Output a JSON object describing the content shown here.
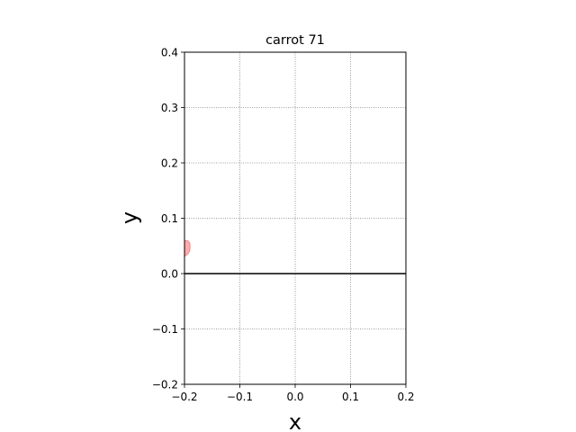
{
  "chart_data": {
    "type": "area",
    "title": "carrot 71",
    "xlabel": "x",
    "ylabel": "y",
    "xlim": [
      -0.2,
      0.2
    ],
    "ylim": [
      -0.2,
      0.4
    ],
    "xticks": [
      -0.2,
      -0.1,
      0.0,
      0.1,
      0.2
    ],
    "xtick_labels": [
      "−0.2",
      "−0.1",
      "0.0",
      "0.1",
      "0.2"
    ],
    "yticks": [
      -0.2,
      -0.1,
      0.0,
      0.1,
      0.2,
      0.3,
      0.4
    ],
    "ytick_labels": [
      "−0.2",
      "−0.1",
      "0.0",
      "0.1",
      "0.2",
      "0.3",
      "0.4"
    ],
    "grid": true,
    "hline": {
      "y": 0.0,
      "color": "#000000"
    },
    "series": [
      {
        "color": "#ff9999",
        "outline_color": "#ff8080",
        "points": [
          [
            -0.2,
            0.031
          ],
          [
            -0.1935,
            0.036
          ],
          [
            -0.1905,
            0.042
          ],
          [
            -0.19,
            0.049
          ],
          [
            -0.1905,
            0.055
          ],
          [
            -0.1935,
            0.059
          ],
          [
            -0.2,
            0.06
          ]
        ]
      }
    ]
  }
}
